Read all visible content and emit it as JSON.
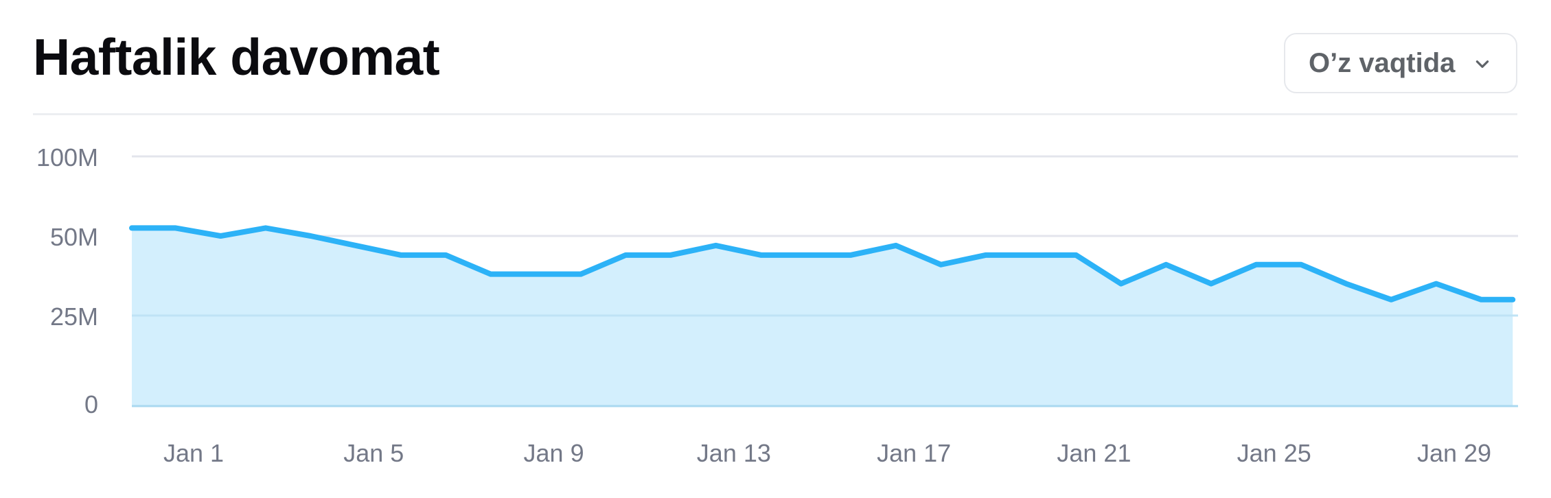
{
  "header": {
    "title": "Haftalik davomat",
    "filter": {
      "selected": "O’z vaqtida",
      "icon": "chevron-down-icon"
    }
  },
  "colors": {
    "line": "#2cb2f7",
    "area": "#d3effd",
    "grid": "#e3e5ec",
    "axis_text": "#737887"
  },
  "chart_data": {
    "type": "area",
    "title": "Haftalik davomat",
    "xlabel": "",
    "ylabel": "",
    "ylim": [
      0,
      100
    ],
    "y_unit": "M",
    "y_ticks": [
      0,
      25,
      50,
      100
    ],
    "y_tick_labels": [
      "0",
      "25M",
      "50M",
      "100M"
    ],
    "x_ticks": [
      1,
      5,
      9,
      13,
      17,
      21,
      25,
      29
    ],
    "x_tick_labels": [
      "Jan 1",
      "Jan 5",
      "Jan 9",
      "Jan 13",
      "Jan 17",
      "Jan 21",
      "Jan 25",
      "Jan 29"
    ],
    "grid": true,
    "series": [
      {
        "x": [
          -0.4,
          0.6,
          1.6,
          2.6,
          3.6,
          4.6,
          5.6,
          6.6,
          7.6,
          8.6,
          9.6,
          10.6,
          11.6,
          12.6,
          13.6,
          14.6,
          15.6,
          16.6,
          17.6,
          18.6,
          19.6,
          20.6,
          21.6,
          22.6,
          23.6,
          24.6,
          25.6,
          26.6,
          27.6,
          28.6,
          29.6,
          30.3
        ],
        "values": [
          55,
          55,
          50,
          55,
          50,
          47,
          44,
          44,
          38,
          38,
          38,
          44,
          44,
          47,
          44,
          44,
          44,
          47,
          41,
          44,
          44,
          44,
          35,
          41,
          35,
          41,
          41,
          35,
          30,
          35,
          30,
          30
        ]
      }
    ]
  }
}
